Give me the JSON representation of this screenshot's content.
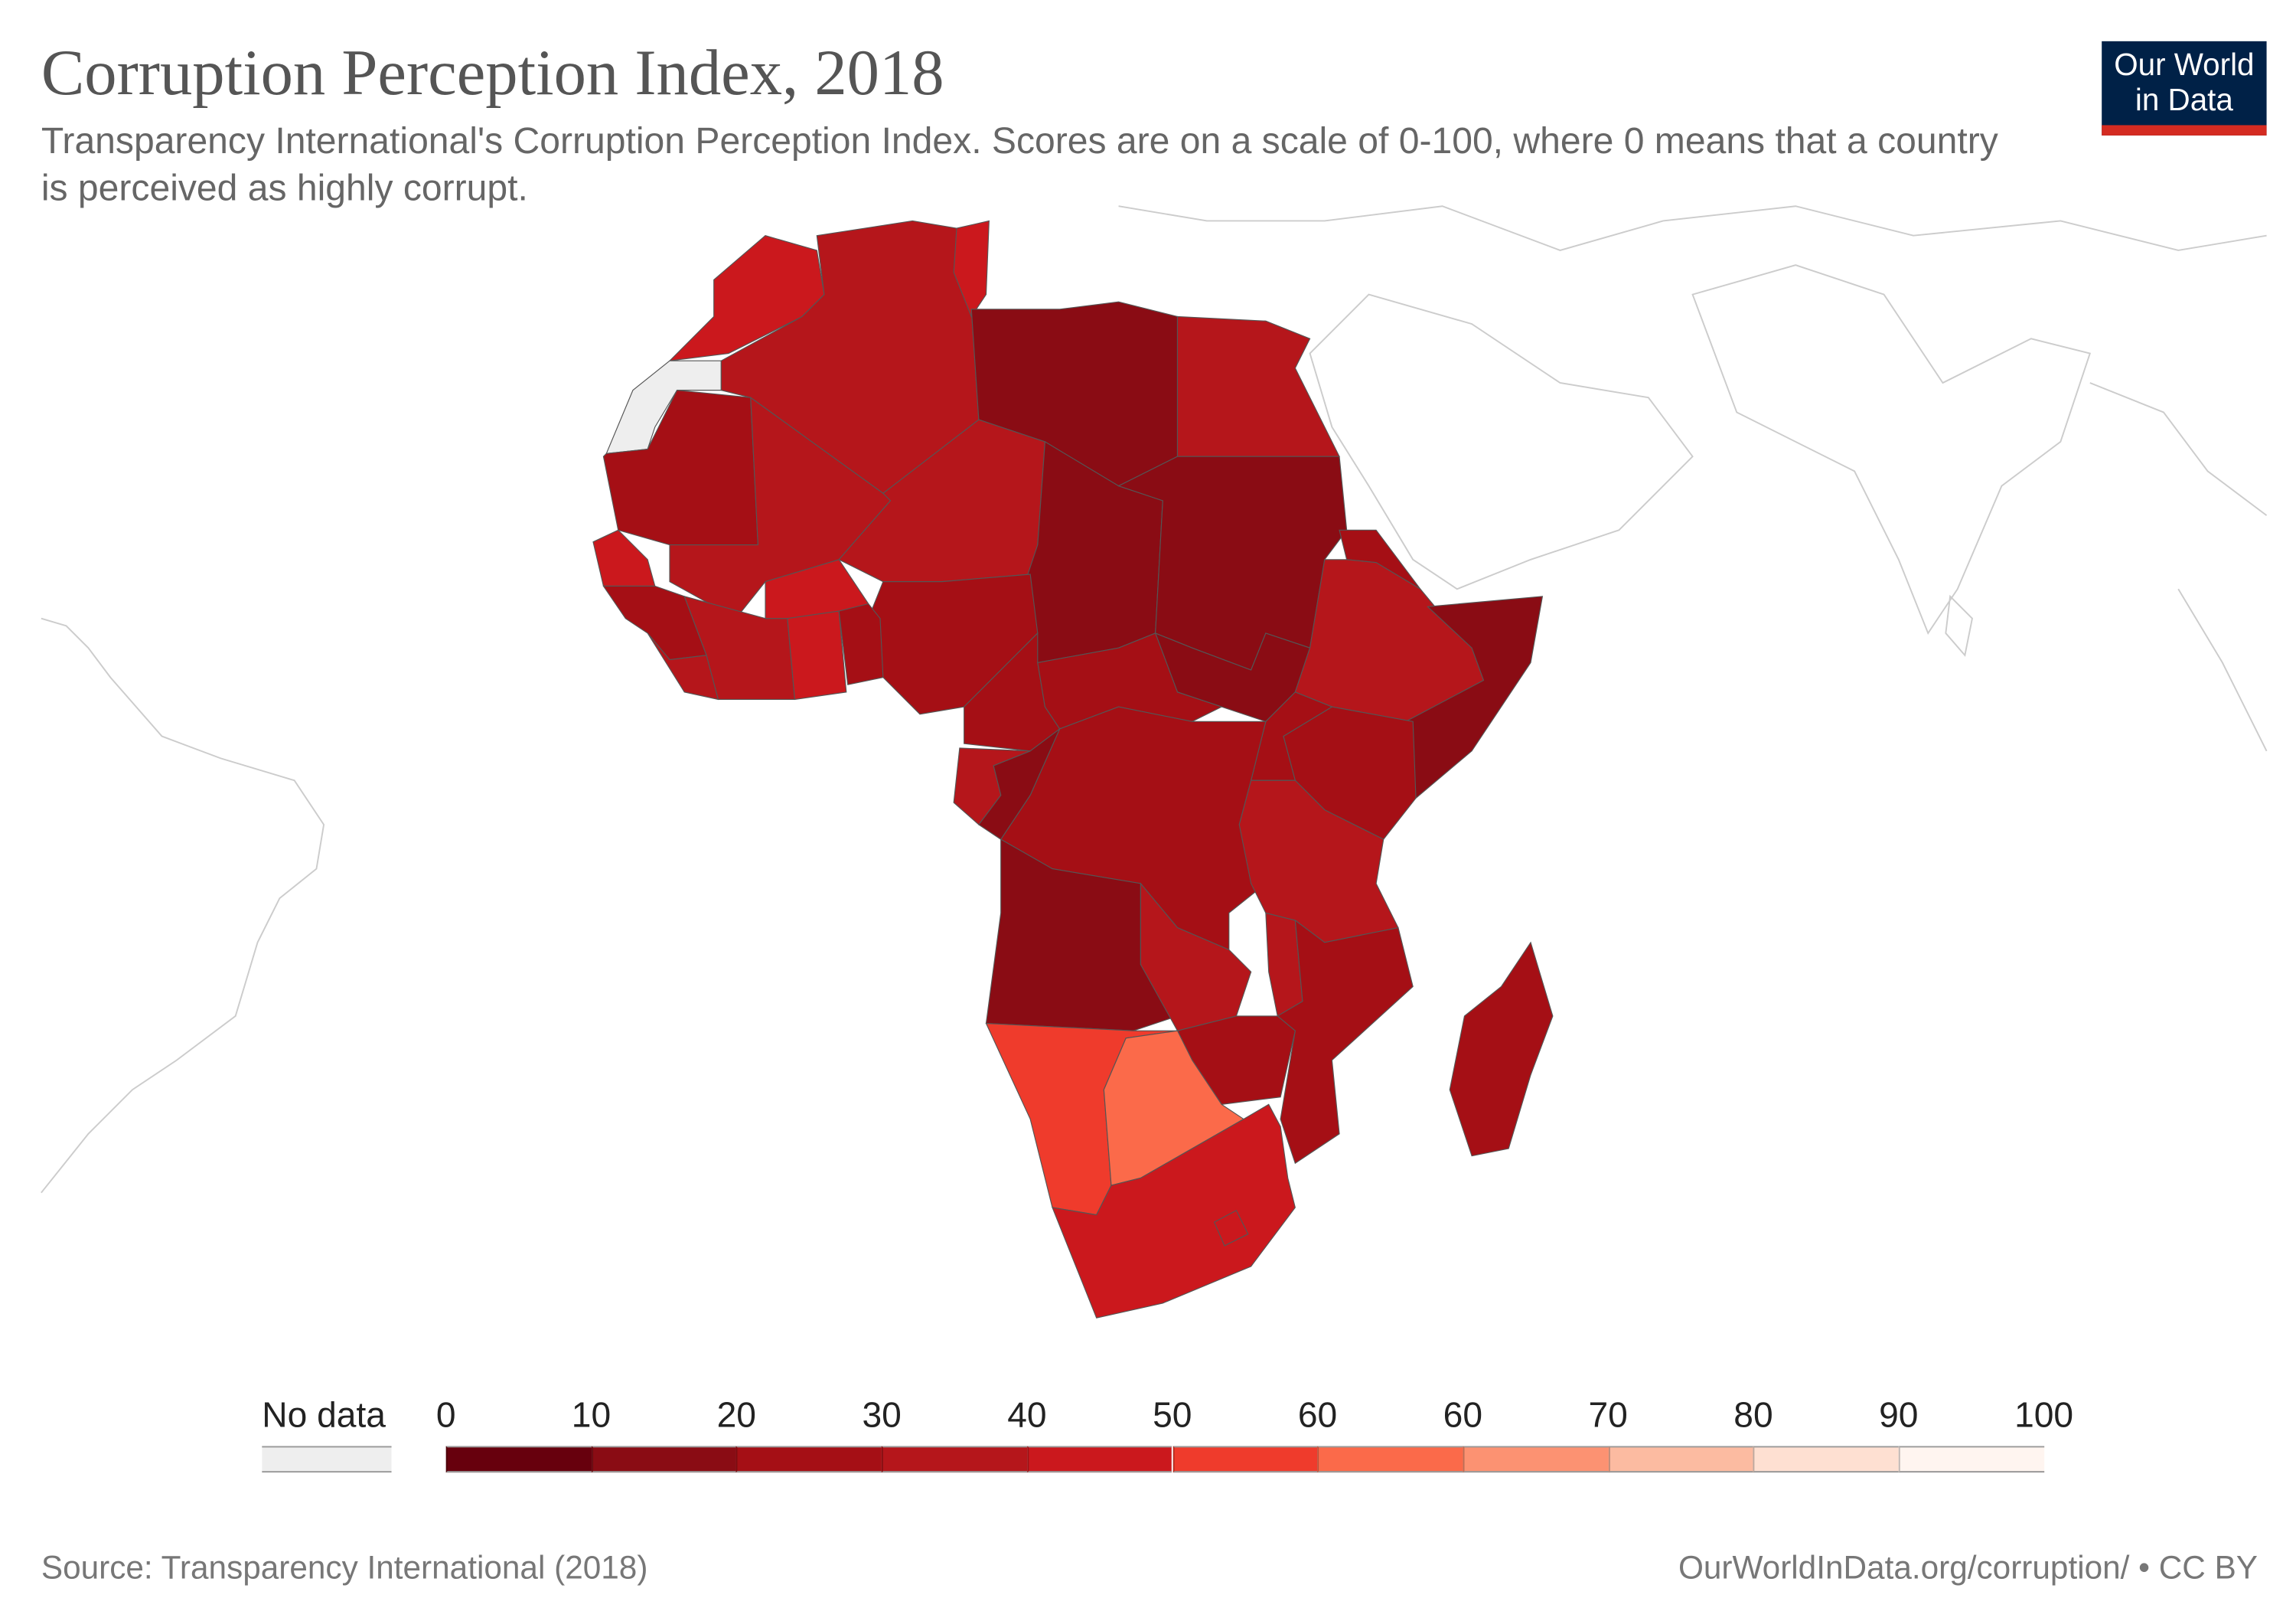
{
  "title": "Corruption Perception Index, 2018",
  "subtitle": "Transparency International's Corruption Perception Index. Scores are on a scale of 0-100, where 0 means that a country is perceived as highly corrupt.",
  "logo": {
    "line1": "Our World",
    "line2": "in Data"
  },
  "legend": {
    "no_data_label": "No data",
    "no_data_color": "#eeeeee",
    "labels": [
      "0",
      "10",
      "20",
      "30",
      "40",
      "50",
      "60",
      "60",
      "70",
      "80",
      "90",
      "100"
    ],
    "colors": [
      "#67000d",
      "#8a0c14",
      "#a50f15",
      "#b5161b",
      "#cb181d",
      "#ef3b2c",
      "#fb6a4a",
      "#fc9272",
      "#fcbba1",
      "#fee0d2",
      "#fff5f0"
    ]
  },
  "regions": [
    {
      "name": "Morocco",
      "score": 43
    },
    {
      "name": "Western Sahara",
      "score": null
    },
    {
      "name": "Algeria",
      "score": 35
    },
    {
      "name": "Tunisia",
      "score": 43
    },
    {
      "name": "Libya",
      "score": 17
    },
    {
      "name": "Egypt",
      "score": 35
    },
    {
      "name": "Mauritania",
      "score": 27
    },
    {
      "name": "Mali",
      "score": 32
    },
    {
      "name": "Niger",
      "score": 34
    },
    {
      "name": "Chad",
      "score": 19
    },
    {
      "name": "Sudan",
      "score": 16
    },
    {
      "name": "South Sudan",
      "score": 13
    },
    {
      "name": "Eritrea",
      "score": 24
    },
    {
      "name": "Ethiopia",
      "score": 34
    },
    {
      "name": "Somalia",
      "score": 10
    },
    {
      "name": "Kenya",
      "score": 27
    },
    {
      "name": "Nigeria",
      "score": 27
    },
    {
      "name": "Cameroon",
      "score": 25
    },
    {
      "name": "Central African Republic",
      "score": 26
    },
    {
      "name": "Democratic Republic of Congo",
      "score": 20
    },
    {
      "name": "Congo",
      "score": 19
    },
    {
      "name": "Gabon",
      "score": 31
    },
    {
      "name": "Angola",
      "score": 19
    },
    {
      "name": "Zambia",
      "score": 35
    },
    {
      "name": "Tanzania",
      "score": 36
    },
    {
      "name": "Mozambique",
      "score": 23
    },
    {
      "name": "Zimbabwe",
      "score": 22
    },
    {
      "name": "Namibia",
      "score": 53
    },
    {
      "name": "Botswana",
      "score": 61
    },
    {
      "name": "South Africa",
      "score": 43
    },
    {
      "name": "Madagascar",
      "score": 25
    },
    {
      "name": "Senegal",
      "score": 45
    },
    {
      "name": "Guinea",
      "score": 28
    },
    {
      "name": "Ghana",
      "score": 41
    },
    {
      "name": "Cote d'Ivoire",
      "score": 35
    },
    {
      "name": "Burkina Faso",
      "score": 41
    },
    {
      "name": "Liberia",
      "score": 32
    },
    {
      "name": "Rwanda",
      "score": 56
    },
    {
      "name": "Uganda",
      "score": 26
    },
    {
      "name": "Malawi",
      "score": 32
    },
    {
      "name": "Lesotho",
      "score": 41
    }
  ],
  "footer": {
    "source": "Source: Transparency International (2018)",
    "link": "OurWorldInData.org/corruption/ • CC BY"
  }
}
